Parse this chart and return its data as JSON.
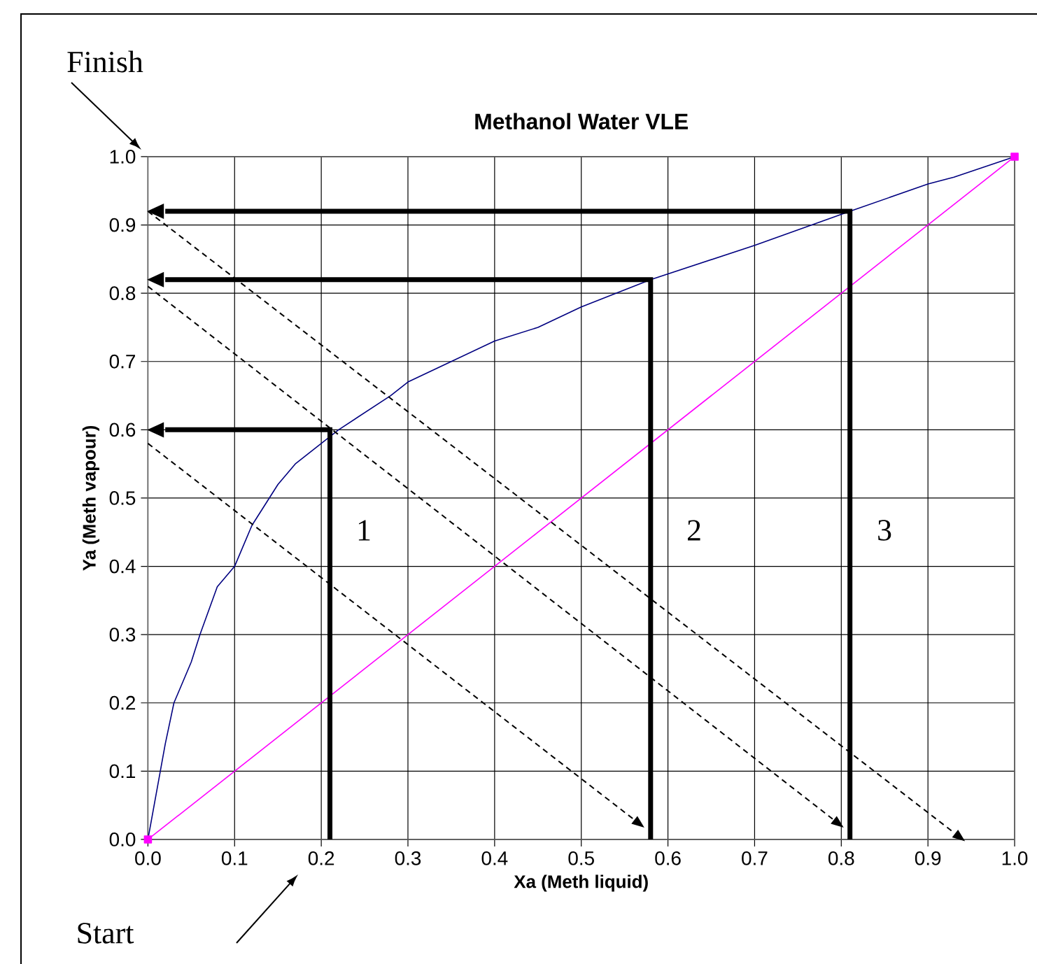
{
  "chart_data": {
    "type": "line",
    "title": "Methanol Water VLE",
    "xlabel": "Xa (Meth liquid)",
    "ylabel": "Ya (Meth vapour)",
    "xlim": [
      0,
      1
    ],
    "ylim": [
      0,
      1
    ],
    "xticks": [
      {
        "value": 0,
        "label": "0.0"
      },
      0.1,
      0.2,
      0.3,
      0.4,
      0.5,
      0.6,
      0.7,
      0.8,
      0.9,
      {
        "value": 1,
        "label": "1.0"
      }
    ],
    "yticks": [
      {
        "value": 0,
        "label": "0.0"
      },
      0.1,
      0.2,
      0.3,
      0.4,
      0.5,
      0.6,
      0.7,
      0.8,
      0.9,
      {
        "value": 1,
        "label": "1.0"
      }
    ],
    "grid": true,
    "series": [
      {
        "color": "#000080",
        "x": [
          0,
          0.02,
          0.03,
          0.05,
          0.06,
          0.08,
          0.1,
          0.12,
          0.15,
          0.17,
          0.2,
          0.22,
          0.28,
          0.3,
          0.35,
          0.4,
          0.45,
          0.5,
          0.56,
          0.58,
          0.7,
          0.81,
          0.9,
          0.93,
          1
        ],
        "values": [
          0,
          0.14,
          0.2,
          0.26,
          0.3,
          0.37,
          0.4,
          0.46,
          0.52,
          0.55,
          0.58,
          0.6,
          0.65,
          0.67,
          0.7,
          0.73,
          0.75,
          0.78,
          0.81,
          0.82,
          0.87,
          0.92,
          0.96,
          0.97,
          1
        ]
      },
      {
        "color": "#ff00ff",
        "marker": "square",
        "x": [
          0,
          1
        ],
        "values": [
          0,
          1
        ]
      },
      {
        "color": "#000000",
        "line_style": "solid",
        "x": [
          0.21,
          0.21,
          0.02
        ],
        "values": [
          0,
          0.6,
          0.6
        ]
      },
      {
        "color": "#000000",
        "line_style": "solid",
        "x": [
          0.58,
          0.58,
          0.02
        ],
        "values": [
          0,
          0.82,
          0.82
        ]
      },
      {
        "color": "#000000",
        "line_style": "solid",
        "x": [
          0.81,
          0.81,
          0.02
        ],
        "values": [
          0,
          0.92,
          0.92
        ]
      },
      {
        "color": "#000000",
        "line_style": "dashed",
        "x": [
          0,
          0.56
        ],
        "values": [
          0.58,
          0.03
        ]
      },
      {
        "color": "#000000",
        "line_style": "dashed",
        "x": [
          0,
          0.79
        ],
        "values": [
          0.81,
          0.03
        ]
      },
      {
        "color": "#000000",
        "line_style": "dashed",
        "x": [
          0,
          0.93
        ],
        "values": [
          0.92,
          0.01
        ]
      }
    ],
    "annotations": [
      "1",
      "2",
      "3",
      "Finish",
      "Start"
    ]
  }
}
